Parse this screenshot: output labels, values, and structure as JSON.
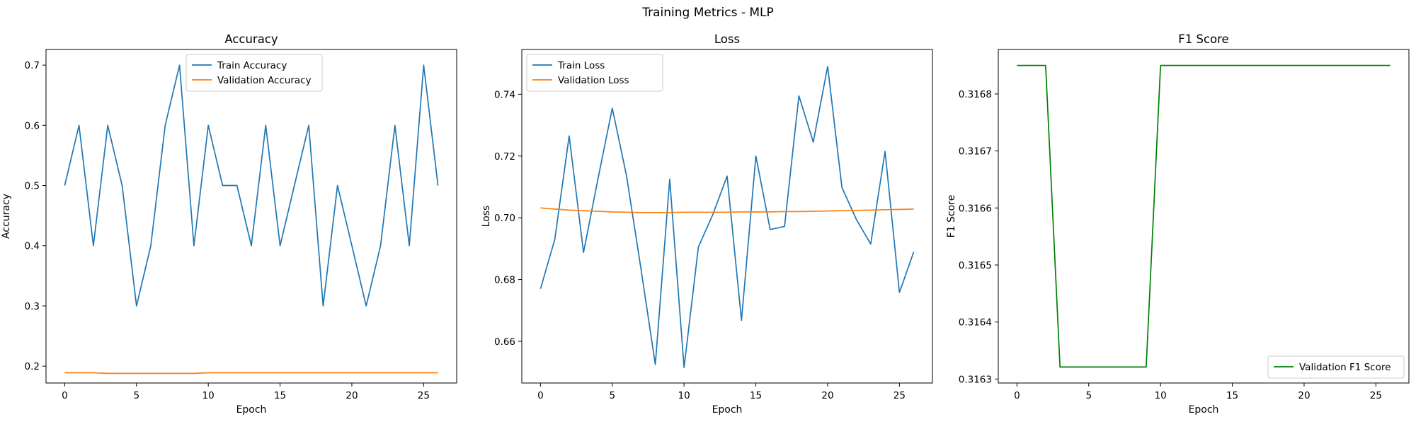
{
  "figure": {
    "suptitle": "Training Metrics - MLP"
  },
  "chart_data": [
    {
      "type": "line",
      "title": "Accuracy",
      "xlabel": "Epoch",
      "ylabel": "Accuracy",
      "xlim": [
        -1.3,
        27.3
      ],
      "ylim": [
        0.172,
        0.726
      ],
      "xticks": [
        0,
        5,
        10,
        15,
        20,
        25
      ],
      "yticks": [
        0.2,
        0.3,
        0.4,
        0.5,
        0.6,
        0.7
      ],
      "tick_format": {
        "x": 0,
        "y": 1
      },
      "legend": "upper center",
      "grid": false,
      "x": [
        0,
        1,
        2,
        3,
        4,
        5,
        6,
        7,
        8,
        9,
        10,
        11,
        12,
        13,
        14,
        15,
        16,
        17,
        18,
        19,
        20,
        21,
        22,
        23,
        24,
        25,
        26
      ],
      "series": [
        {
          "name": "Train Accuracy",
          "color": "#1f77b4",
          "values": [
            0.5,
            0.6,
            0.4,
            0.6,
            0.5,
            0.3,
            0.4,
            0.6,
            0.7,
            0.4,
            0.6,
            0.5,
            0.5,
            0.4,
            0.6,
            0.4,
            0.5,
            0.6,
            0.3,
            0.5,
            0.4,
            0.3,
            0.4,
            0.6,
            0.4,
            0.7,
            0.5
          ]
        },
        {
          "name": "Validation Accuracy",
          "color": "#ff7f0e",
          "values": [
            0.189,
            0.189,
            0.189,
            0.188,
            0.188,
            0.188,
            0.188,
            0.188,
            0.188,
            0.188,
            0.189,
            0.189,
            0.189,
            0.189,
            0.189,
            0.189,
            0.189,
            0.189,
            0.189,
            0.189,
            0.189,
            0.189,
            0.189,
            0.189,
            0.189,
            0.189,
            0.189
          ]
        }
      ]
    },
    {
      "type": "line",
      "title": "Loss",
      "xlabel": "Epoch",
      "ylabel": "Loss",
      "xlim": [
        -1.3,
        27.3
      ],
      "ylim": [
        0.6465,
        0.7545
      ],
      "xticks": [
        0,
        5,
        10,
        15,
        20,
        25
      ],
      "yticks": [
        0.66,
        0.68,
        0.7,
        0.72,
        0.74
      ],
      "tick_format": {
        "x": 0,
        "y": 2
      },
      "legend": "upper left",
      "grid": false,
      "x": [
        0,
        1,
        2,
        3,
        4,
        5,
        6,
        7,
        8,
        9,
        10,
        11,
        12,
        13,
        14,
        15,
        16,
        17,
        18,
        19,
        20,
        21,
        22,
        23,
        24,
        25,
        26
      ],
      "series": [
        {
          "name": "Train Loss",
          "color": "#1f77b4",
          "values": [
            0.677,
            0.693,
            0.7265,
            0.6888,
            0.7125,
            0.7355,
            0.7135,
            0.6835,
            0.6525,
            0.7125,
            0.6515,
            0.6905,
            0.701,
            0.7135,
            0.6668,
            0.72,
            0.6962,
            0.6972,
            0.7395,
            0.7245,
            0.749,
            0.7098,
            0.6995,
            0.6915,
            0.7215,
            0.6758,
            0.689
          ]
        },
        {
          "name": "Validation Loss",
          "color": "#ff7f0e",
          "values": [
            0.7032,
            0.7028,
            0.7025,
            0.7023,
            0.7021,
            0.7019,
            0.7018,
            0.7017,
            0.7017,
            0.7017,
            0.7018,
            0.7018,
            0.7018,
            0.7018,
            0.7019,
            0.7019,
            0.7019,
            0.702,
            0.702,
            0.7021,
            0.7022,
            0.7023,
            0.7024,
            0.7025,
            0.7026,
            0.7027,
            0.7028
          ]
        }
      ]
    },
    {
      "type": "line",
      "title": "F1 Score",
      "xlabel": "Epoch",
      "ylabel": "F1 Score",
      "xlim": [
        -1.3,
        27.3
      ],
      "ylim": [
        0.316293,
        0.316878
      ],
      "xticks": [
        0,
        5,
        10,
        15,
        20,
        25
      ],
      "yticks": [
        0.3163,
        0.3164,
        0.3165,
        0.3166,
        0.3167,
        0.3168
      ],
      "tick_format": {
        "x": 0,
        "y": 4
      },
      "legend": "lower right",
      "grid": false,
      "x": [
        0,
        1,
        2,
        3,
        4,
        5,
        6,
        7,
        8,
        9,
        10,
        11,
        12,
        13,
        14,
        15,
        16,
        17,
        18,
        19,
        20,
        21,
        22,
        23,
        24,
        25,
        26
      ],
      "series": [
        {
          "name": "Validation F1 Score",
          "color": "#008000",
          "values": [
            0.31685,
            0.31685,
            0.31685,
            0.316321,
            0.316321,
            0.316321,
            0.316321,
            0.316321,
            0.316321,
            0.316321,
            0.31685,
            0.31685,
            0.31685,
            0.31685,
            0.31685,
            0.31685,
            0.31685,
            0.31685,
            0.31685,
            0.31685,
            0.31685,
            0.31685,
            0.31685,
            0.31685,
            0.31685,
            0.31685,
            0.31685
          ]
        }
      ]
    }
  ]
}
